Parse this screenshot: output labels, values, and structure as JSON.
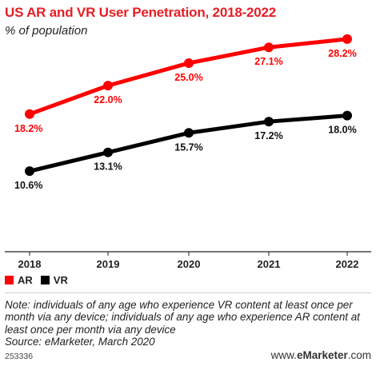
{
  "chart_data": {
    "type": "line",
    "title": "US AR and VR User Penetration, 2018-2022",
    "subtitle": "% of population",
    "categories": [
      "2018",
      "2019",
      "2020",
      "2021",
      "2022"
    ],
    "series": [
      {
        "name": "AR",
        "color": "#ff0000",
        "values": [
          18.2,
          22.0,
          25.0,
          27.1,
          28.2
        ],
        "labels": [
          "18.2%",
          "22.0%",
          "25.0%",
          "27.1%",
          "28.2%"
        ]
      },
      {
        "name": "VR",
        "color": "#000000",
        "values": [
          10.6,
          13.1,
          15.7,
          17.2,
          18.0
        ],
        "labels": [
          "10.6%",
          "13.1%",
          "15.7%",
          "17.2%",
          "18.0%"
        ]
      }
    ],
    "legend": "bottom-left",
    "grid": false
  },
  "footer": {
    "note": "Note: individuals of any age who experience VR content at least once per month via any device; individuals of any age who experience AR content at least once per month via any device",
    "source": "Source: eMarketer, March 2020",
    "chart_id": "253336",
    "brand_prefix": "www.",
    "brand_name": "eMarketer",
    "brand_suffix": ".com"
  }
}
